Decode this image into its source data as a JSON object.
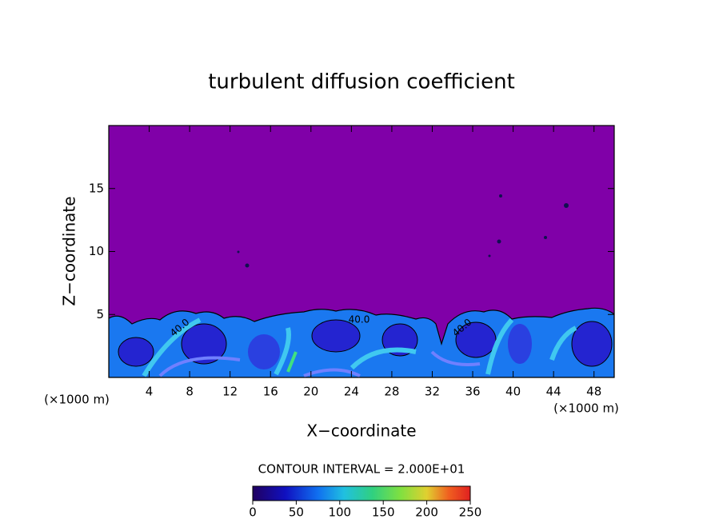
{
  "chart_data": {
    "type": "heatmap",
    "title": "turbulent diffusion coefficient",
    "xlabel": "X−coordinate",
    "ylabel": "Z−coordinate",
    "x_unit": "(×1000 m)",
    "y_unit": "(×1000 m)",
    "xlim": [
      0,
      50
    ],
    "xticks": [
      4,
      8,
      12,
      16,
      20,
      24,
      28,
      32,
      36,
      40,
      44,
      48
    ],
    "ylim": [
      0,
      20
    ],
    "yticks": [
      5,
      10,
      15
    ],
    "contour_interval": "CONTOUR INTERVAL = 2.000E+01",
    "contour_labels": [
      "40.0",
      "40.0",
      "40.0"
    ],
    "clim": [
      0,
      250
    ],
    "cticks": [
      0,
      50,
      100,
      150,
      200,
      250
    ]
  }
}
